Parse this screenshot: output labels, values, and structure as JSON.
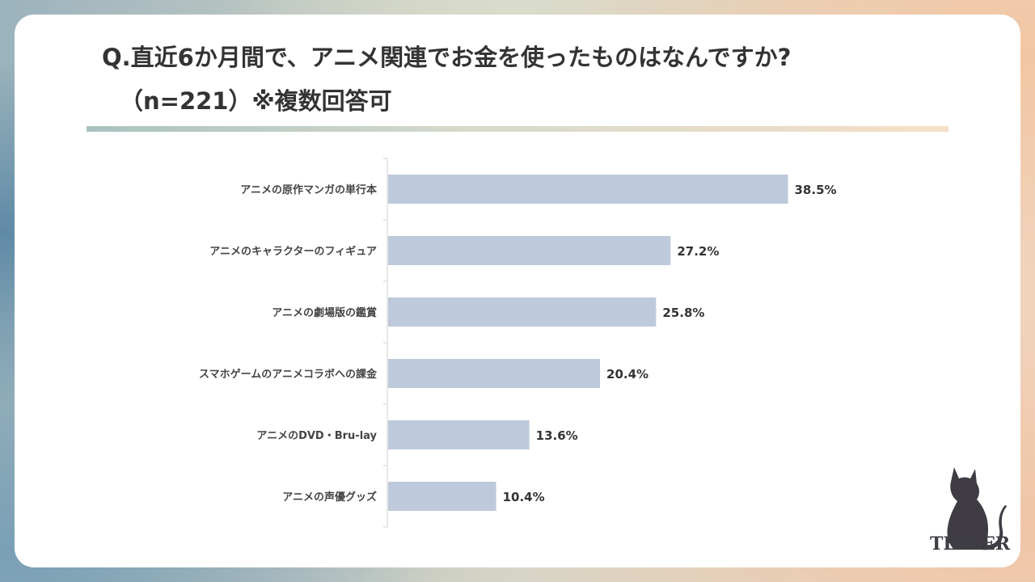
{
  "title": {
    "line1": "Q.直近6か月間で、アニメ関連でお金を使ったものはなんですか?",
    "line2": "（n=221）※複数回答可"
  },
  "chart_data": {
    "type": "bar",
    "orientation": "horizontal",
    "categories": [
      "アニメの原作マンガの単行本",
      "アニメのキャラクターのフィギュア",
      "アニメの劇場版の鑑賞",
      "スマホゲームのアニメコラボへの課金",
      "アニメのDVD・Bru-lay",
      "アニメの声優グッズ"
    ],
    "values": [
      38.5,
      27.2,
      25.8,
      20.4,
      13.6,
      10.4
    ],
    "value_labels": [
      "38.5%",
      "27.2%",
      "25.8%",
      "20.4%",
      "13.6%",
      "10.4%"
    ],
    "unit": "%",
    "bar_color": "#bec9db",
    "xlim": [
      0,
      45
    ],
    "grid": false,
    "legend": "none"
  },
  "logo": {
    "text": "TELLER",
    "icon": "cat-icon",
    "color": "#3f3c44"
  }
}
